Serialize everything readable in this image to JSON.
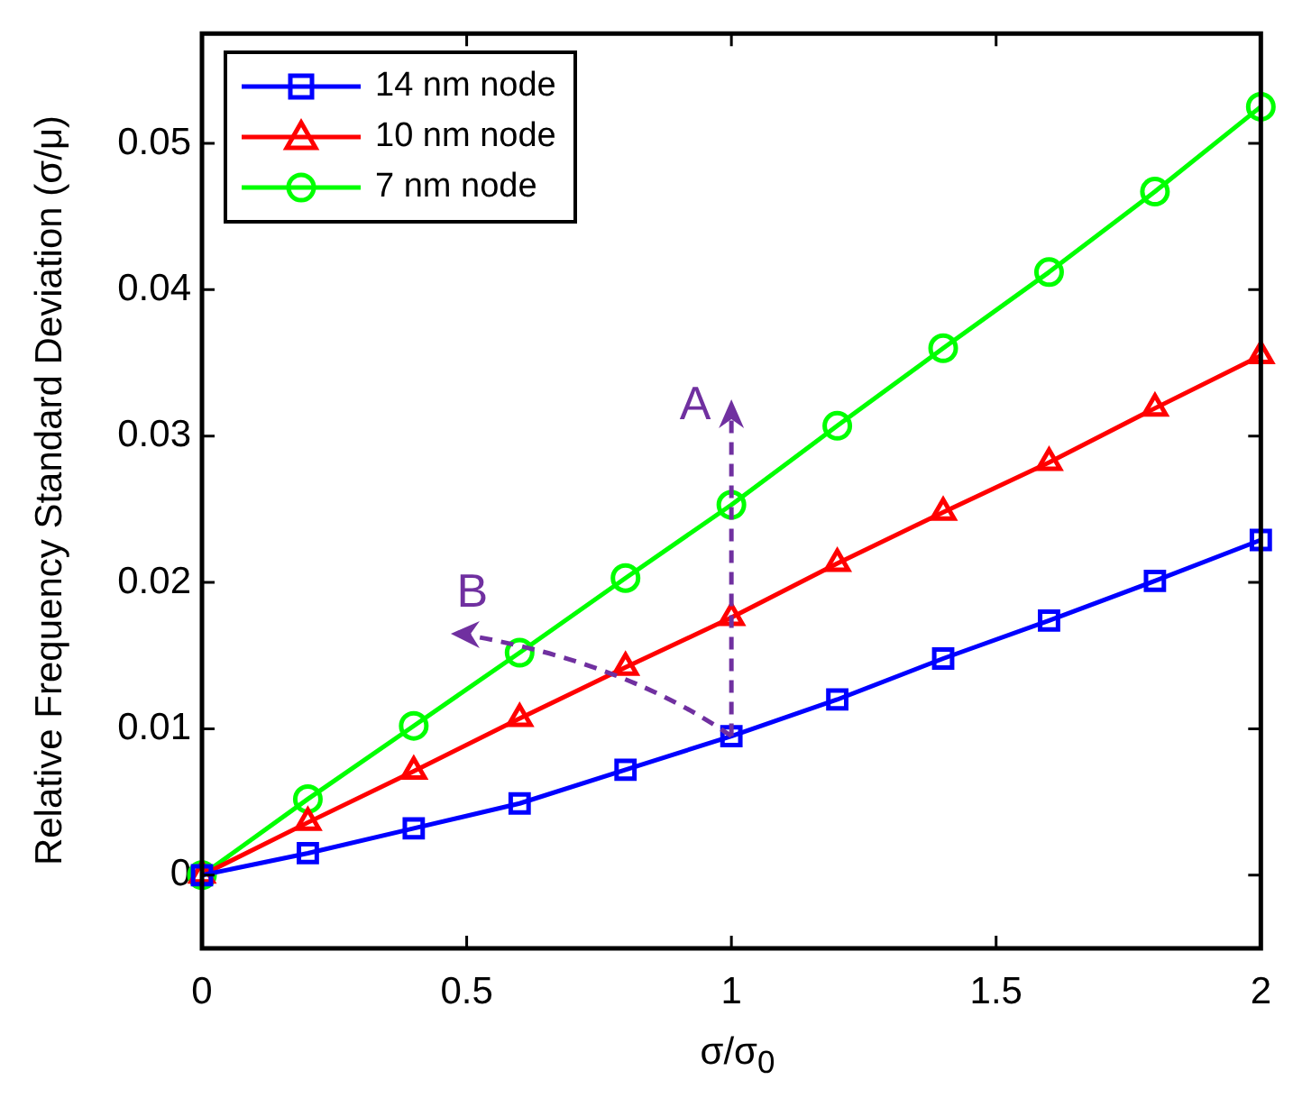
{
  "chart_data": {
    "type": "line",
    "xlabel": "σ/σ$_{0}$",
    "ylabel": "Relative Frequency Standard Deviation (σ/μ)",
    "x": [
      0,
      0.2,
      0.4,
      0.6,
      0.8,
      1,
      1.2,
      1.4,
      1.6,
      1.8,
      2
    ],
    "series": [
      {
        "name": "14 nm node",
        "color": "#0000ff",
        "marker": "square",
        "values": [
          0,
          0.0015,
          0.0032,
          0.0049,
          0.0072,
          0.0095,
          0.012,
          0.0148,
          0.0174,
          0.0201,
          0.0229
        ]
      },
      {
        "name": "10 nm node",
        "color": "#ff0000",
        "marker": "triangle",
        "values": [
          0,
          0.0036,
          0.0071,
          0.0107,
          0.0142,
          0.0176,
          0.0213,
          0.0248,
          0.0282,
          0.0319,
          0.0355
        ]
      },
      {
        "name": "7 nm node",
        "color": "#00ff00",
        "marker": "circle",
        "values": [
          0,
          0.0052,
          0.0102,
          0.0152,
          0.0203,
          0.0253,
          0.0307,
          0.036,
          0.0412,
          0.0467,
          0.0525
        ]
      }
    ],
    "xlim": [
      0,
      2
    ],
    "xticks": [
      0,
      0.5,
      1,
      1.5,
      2
    ],
    "ylim": [
      -0.005,
      0.0575
    ],
    "yticks": [
      0,
      0.01,
      0.02,
      0.03,
      0.04,
      0.05
    ],
    "annotations": [
      "A",
      "B"
    ],
    "grid": false,
    "legend": "top left",
    "line_style": "solid"
  }
}
